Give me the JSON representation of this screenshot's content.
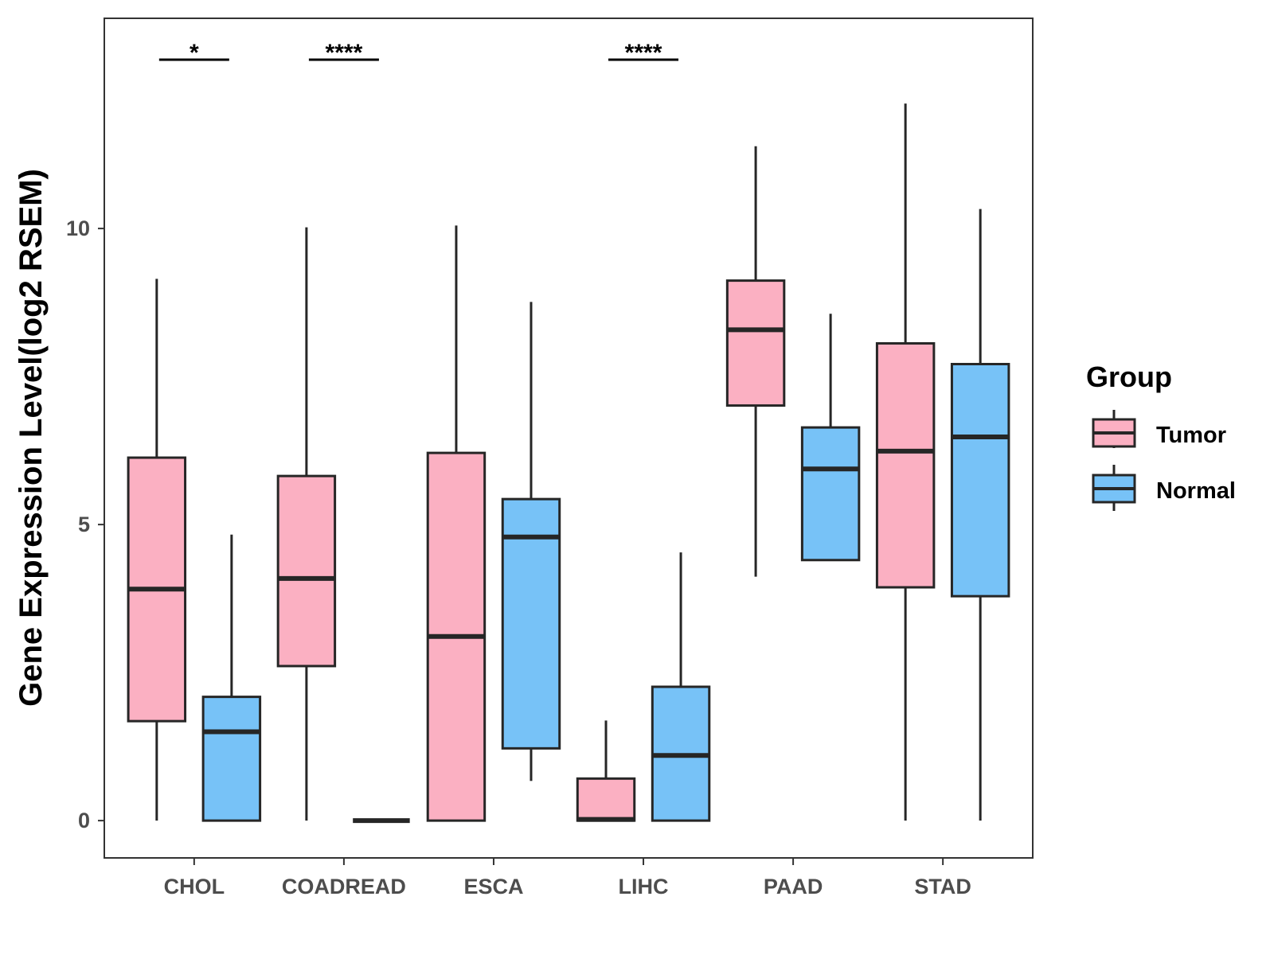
{
  "chart_data": {
    "type": "boxplot",
    "title": "",
    "xlabel": "",
    "ylabel": "Gene Expression Level(log2 RSEM)",
    "ylim": [
      -0.63,
      13.55
    ],
    "yticks": [
      0,
      5,
      10
    ],
    "grid": false,
    "categories": [
      "CHOL",
      "COADREAD",
      "ESCA",
      "LIHC",
      "PAAD",
      "STAD"
    ],
    "legend": {
      "title": "Group",
      "position": "right",
      "entries": [
        "Tumor",
        "Normal"
      ]
    },
    "colors": {
      "Tumor": "#fbb0c2",
      "Normal": "#77c2f7",
      "outline": "#262626"
    },
    "series": [
      {
        "name": "Tumor",
        "boxes": [
          {
            "min": 0.0,
            "q1": 1.68,
            "median": 3.91,
            "q3": 6.13,
            "max": 9.15
          },
          {
            "min": 0.0,
            "q1": 2.61,
            "median": 4.09,
            "q3": 5.82,
            "max": 10.02
          },
          {
            "min": 0.0,
            "q1": 0.0,
            "median": 3.11,
            "q3": 6.21,
            "max": 10.05
          },
          {
            "min": 0.0,
            "q1": 0.0,
            "median": 0.02,
            "q3": 0.71,
            "max": 1.69
          },
          {
            "min": 4.12,
            "q1": 7.01,
            "median": 8.29,
            "q3": 9.12,
            "max": 11.39
          },
          {
            "min": 0.0,
            "q1": 3.94,
            "median": 6.24,
            "q3": 8.06,
            "max": 12.11
          }
        ]
      },
      {
        "name": "Normal",
        "boxes": [
          {
            "min": 0.0,
            "q1": 0.0,
            "median": 1.5,
            "q3": 2.09,
            "max": 4.83
          },
          {
            "min": 0.0,
            "q1": 0.0,
            "median": 0.0,
            "q3": 0.0,
            "max": 0.0
          },
          {
            "min": 0.67,
            "q1": 1.22,
            "median": 4.79,
            "q3": 5.43,
            "max": 8.76
          },
          {
            "min": 0.0,
            "q1": 0.0,
            "median": 1.1,
            "q3": 2.26,
            "max": 4.53
          },
          {
            "min": 4.4,
            "q1": 4.4,
            "median": 5.94,
            "q3": 6.64,
            "max": 8.56
          },
          {
            "min": 0.0,
            "q1": 3.79,
            "median": 6.48,
            "q3": 7.71,
            "max": 10.33
          }
        ]
      }
    ],
    "significance": [
      {
        "category": "CHOL",
        "label": "*"
      },
      {
        "category": "COADREAD",
        "label": "****"
      },
      {
        "category": "LIHC",
        "label": "****"
      }
    ]
  }
}
